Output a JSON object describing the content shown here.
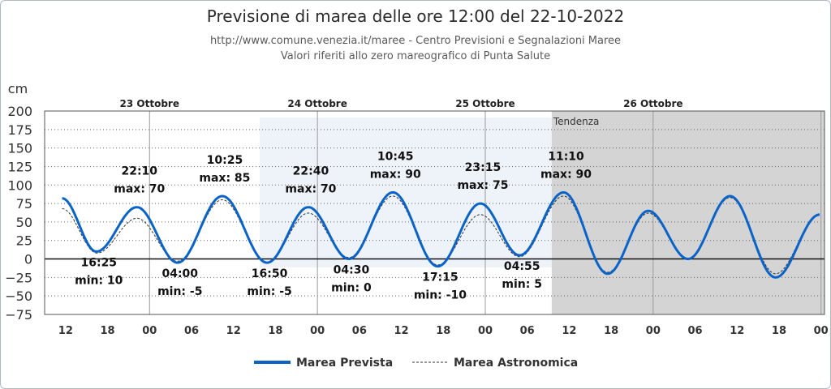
{
  "chart_data": {
    "type": "line",
    "title": "Previsione di marea delle ore 12:00 del 22-10-2022",
    "subtitle_lines": [
      "http://www.comune.venezia.it/maree - Centro Previsioni e Segnalazioni Maree",
      "Valori riferiti allo zero mareografico di Punta Salute"
    ],
    "ylabel": "cm",
    "ylim": [
      -75,
      200
    ],
    "yticks": [
      "200",
      "175",
      "150",
      "125",
      "100",
      "75",
      "50",
      "25",
      "0",
      "−25",
      "−50",
      "−75"
    ],
    "ytick_values": [
      200,
      175,
      150,
      125,
      100,
      75,
      50,
      25,
      0,
      -25,
      -50,
      -75
    ],
    "xlim_hours": [
      -3,
      108.5
    ],
    "x_tick_hours": [
      0,
      6,
      12,
      18,
      24,
      30,
      36,
      42,
      48,
      54,
      60,
      66,
      72,
      78,
      84,
      90,
      96,
      102,
      108
    ],
    "x_tick_labels": [
      "12",
      "18",
      "00",
      "06",
      "12",
      "18",
      "00",
      "06",
      "12",
      "18",
      "00",
      "06",
      "12",
      "18",
      "00",
      "06",
      "12",
      "18",
      "00"
    ],
    "day_labels": [
      {
        "label": "23 Ottobre",
        "hour": 12
      },
      {
        "label": "24 Ottobre",
        "hour": 36
      },
      {
        "label": "25 Ottobre",
        "hour": 60
      },
      {
        "label": "26 Ottobre",
        "hour": 84
      }
    ],
    "grid": true,
    "trend_region": {
      "label": "Tendenza",
      "start_hour": 69.5,
      "end_hour": 108.5
    },
    "x_units": "hours after 12:00 of 22-10-2022",
    "series": [
      {
        "name": "Marea Prevista",
        "color": "#0a64c8",
        "style": "solid",
        "x": [
          -0.5,
          4.4,
          10.2,
          16.0,
          22.4,
          28.8,
          34.7,
          40.5,
          46.8,
          53.2,
          59.3,
          64.9,
          71.2,
          77.5,
          83.3,
          89.0,
          95.0,
          101.5,
          107.8
        ],
        "y": [
          82,
          10,
          70,
          -5,
          85,
          -5,
          70,
          0,
          90,
          -10,
          75,
          5,
          90,
          -20,
          65,
          0,
          85,
          -25,
          60
        ]
      },
      {
        "name": "Marea Astronomica",
        "color": "#333333",
        "style": "dashed",
        "x": [
          -0.5,
          4.5,
          10.2,
          16.0,
          22.4,
          28.8,
          34.7,
          40.5,
          46.8,
          53.2,
          59.3,
          64.9,
          71.2,
          77.5,
          83.3,
          89.0,
          95.0,
          101.5,
          107.8
        ],
        "y": [
          68,
          8,
          55,
          -3,
          80,
          -4,
          62,
          2,
          85,
          -8,
          60,
          3,
          85,
          -18,
          62,
          0,
          83,
          -20,
          60
        ]
      }
    ],
    "annotations": [
      {
        "time": "22:10",
        "value": "max: 70",
        "hour": 10.2,
        "pos": "above"
      },
      {
        "time": "16:25",
        "value": "min: 10",
        "hour": 4.4,
        "pos": "below"
      },
      {
        "time": "04:00",
        "value": "min: -5",
        "hour": 16.0,
        "pos": "below"
      },
      {
        "time": "10:25",
        "value": "max: 85",
        "hour": 22.4,
        "pos": "above"
      },
      {
        "time": "16:50",
        "value": "min: -5",
        "hour": 28.8,
        "pos": "below"
      },
      {
        "time": "22:40",
        "value": "max: 70",
        "hour": 34.7,
        "pos": "above"
      },
      {
        "time": "04:30",
        "value": "min: 0",
        "hour": 40.5,
        "pos": "below"
      },
      {
        "time": "10:45",
        "value": "max: 90",
        "hour": 46.8,
        "pos": "above"
      },
      {
        "time": "17:15",
        "value": "min: -10",
        "hour": 53.2,
        "pos": "below"
      },
      {
        "time": "23:15",
        "value": "max: 75",
        "hour": 59.3,
        "pos": "above"
      },
      {
        "time": "04:55",
        "value": "min: 5",
        "hour": 64.9,
        "pos": "below"
      },
      {
        "time": "11:10",
        "value": "max: 90",
        "hour": 71.2,
        "pos": "above"
      }
    ]
  },
  "legend": {
    "items": [
      {
        "label": "Marea Prevista",
        "color": "#0a64c8"
      },
      {
        "label": "Marea Astronomica",
        "color": "#333333"
      }
    ]
  }
}
